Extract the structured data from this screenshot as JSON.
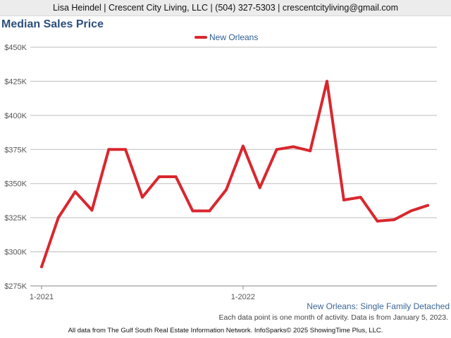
{
  "header": {
    "contact": "Lisa Heindel | Crescent City Living, LLC | (504) 327-5303 | crescentcityliving@gmail.com"
  },
  "footer": {
    "series_description": "New Orleans: Single Family Detached",
    "data_note": "Each data point is one month of activity. Data is from January 5, 2023.",
    "attribution": "All data from The Gulf South Real Estate Information Network. InfoSparks© 2025 ShowingTime Plus, LLC."
  },
  "chart_data": {
    "type": "line",
    "title": "Median Sales Price",
    "xlabel": "",
    "ylabel": "",
    "ylim": [
      275000,
      450000
    ],
    "yticks": [
      {
        "value": 275000,
        "label": "$275K"
      },
      {
        "value": 300000,
        "label": "$300K"
      },
      {
        "value": 325000,
        "label": "$325K"
      },
      {
        "value": 350000,
        "label": "$350K"
      },
      {
        "value": 375000,
        "label": "$375K"
      },
      {
        "value": 400000,
        "label": "$400K"
      },
      {
        "value": 425000,
        "label": "$425K"
      },
      {
        "value": 450000,
        "label": "$450K"
      }
    ],
    "x": [
      "2021-01",
      "2021-02",
      "2021-03",
      "2021-04",
      "2021-05",
      "2021-06",
      "2021-07",
      "2021-08",
      "2021-09",
      "2021-10",
      "2021-11",
      "2021-12",
      "2022-01",
      "2022-02",
      "2022-03",
      "2022-04",
      "2022-05",
      "2022-06",
      "2022-07",
      "2022-08",
      "2022-09",
      "2022-10",
      "2022-11",
      "2022-12"
    ],
    "xticks": [
      {
        "x": "2021-01",
        "label": "1-2021"
      },
      {
        "x": "2022-01",
        "label": "1-2022"
      }
    ],
    "grid": true,
    "legend_position": "top-center",
    "series": [
      {
        "name": "New Orleans",
        "color": "#d9272e",
        "values": [
          289000,
          325000,
          344000,
          330500,
          375000,
          375000,
          340000,
          355000,
          355000,
          330000,
          330000,
          345500,
          377500,
          347000,
          375000,
          377000,
          374000,
          425000,
          338000,
          340000,
          322500,
          323500,
          330000,
          334000
        ]
      }
    ]
  }
}
